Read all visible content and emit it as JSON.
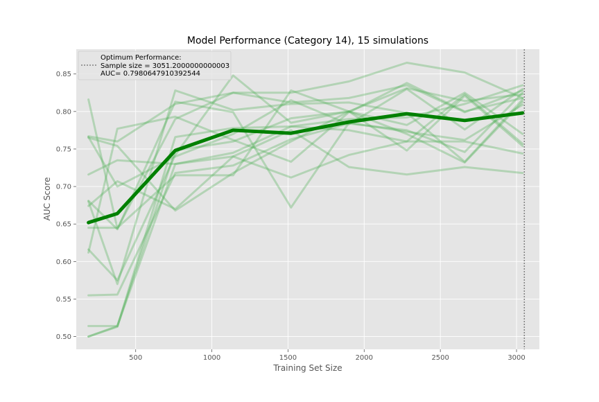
{
  "chart_data": {
    "type": "line",
    "title": "Model Performance (Category 14), 15 simulations",
    "xlabel": "Training Set Size",
    "ylabel": "AUC Score",
    "xlim": [
      110,
      3150
    ],
    "ylim": [
      0.483,
      0.883
    ],
    "x_ticks": [
      500,
      1000,
      1500,
      2000,
      2500,
      3000
    ],
    "y_ticks": [
      0.5,
      0.55,
      0.6,
      0.65,
      0.7,
      0.75,
      0.8,
      0.85
    ],
    "x_tick_labels": [
      "500",
      "1000",
      "1500",
      "2000",
      "2500",
      "3000"
    ],
    "y_tick_labels": [
      "0.50",
      "0.55",
      "0.60",
      "0.65",
      "0.70",
      "0.75",
      "0.80",
      "0.85"
    ],
    "x": [
      190,
      380,
      760,
      1140,
      1520,
      1900,
      2280,
      2660,
      3040
    ],
    "grid": true,
    "colors": {
      "background": "#e5e5e5",
      "grid": "#ffffff",
      "mean_line": "#008000",
      "sim_line": "#4caf50",
      "optimum_line": "#808080",
      "text": "#555555",
      "title": "#000000"
    },
    "mean": {
      "values": [
        0.652,
        0.664,
        0.748,
        0.775,
        0.771,
        0.786,
        0.797,
        0.788,
        0.798
      ]
    },
    "simulations": [
      {
        "values": [
          0.5,
          0.514,
          0.748,
          0.76,
          0.791,
          0.8,
          0.831,
          0.814,
          0.823
        ]
      },
      {
        "values": [
          0.816,
          0.644,
          0.79,
          0.825,
          0.812,
          0.818,
          0.835,
          0.799,
          0.828
        ]
      },
      {
        "values": [
          0.767,
          0.76,
          0.81,
          0.825,
          0.825,
          0.84,
          0.865,
          0.852,
          0.818
        ]
      },
      {
        "values": [
          0.765,
          0.754,
          0.668,
          0.718,
          0.76,
          0.8,
          0.77,
          0.732,
          0.813
        ]
      },
      {
        "values": [
          0.612,
          0.777,
          0.793,
          0.762,
          0.733,
          0.799,
          0.838,
          0.8,
          0.818
        ]
      },
      {
        "values": [
          0.681,
          0.643,
          0.813,
          0.799,
          0.672,
          0.785,
          0.773,
          0.762,
          0.809
        ]
      },
      {
        "values": [
          0.555,
          0.556,
          0.718,
          0.728,
          0.763,
          0.784,
          0.775,
          0.746,
          0.825
        ]
      },
      {
        "values": [
          0.716,
          0.735,
          0.73,
          0.74,
          0.775,
          0.726,
          0.716,
          0.726,
          0.718
        ]
      },
      {
        "values": [
          0.5,
          0.513,
          0.766,
          0.778,
          0.78,
          0.775,
          0.76,
          0.76,
          0.744
        ]
      },
      {
        "values": [
          0.674,
          0.707,
          0.67,
          0.74,
          0.712,
          0.742,
          0.76,
          0.823,
          0.757
        ]
      },
      {
        "values": [
          0.514,
          0.514,
          0.73,
          0.745,
          0.78,
          0.79,
          0.792,
          0.81,
          0.835
        ]
      },
      {
        "values": [
          0.616,
          0.575,
          0.742,
          0.848,
          0.785,
          0.8,
          0.782,
          0.825,
          0.77
        ]
      },
      {
        "values": [
          0.766,
          0.7,
          0.74,
          0.77,
          0.815,
          0.783,
          0.83,
          0.776,
          0.83
        ]
      },
      {
        "values": [
          0.68,
          0.57,
          0.828,
          0.802,
          0.81,
          0.812,
          0.798,
          0.733,
          0.816
        ]
      },
      {
        "values": [
          0.645,
          0.645,
          0.715,
          0.715,
          0.828,
          0.8,
          0.748,
          0.821,
          0.754
        ]
      }
    ],
    "optimum": {
      "x": 3051.2
    },
    "legend": {
      "placement": "top-left",
      "lines": [
        "Optimum Performance:",
        "Sample size = 3051.2000000000003",
        "AUC= 0.7980647910392544"
      ]
    }
  }
}
